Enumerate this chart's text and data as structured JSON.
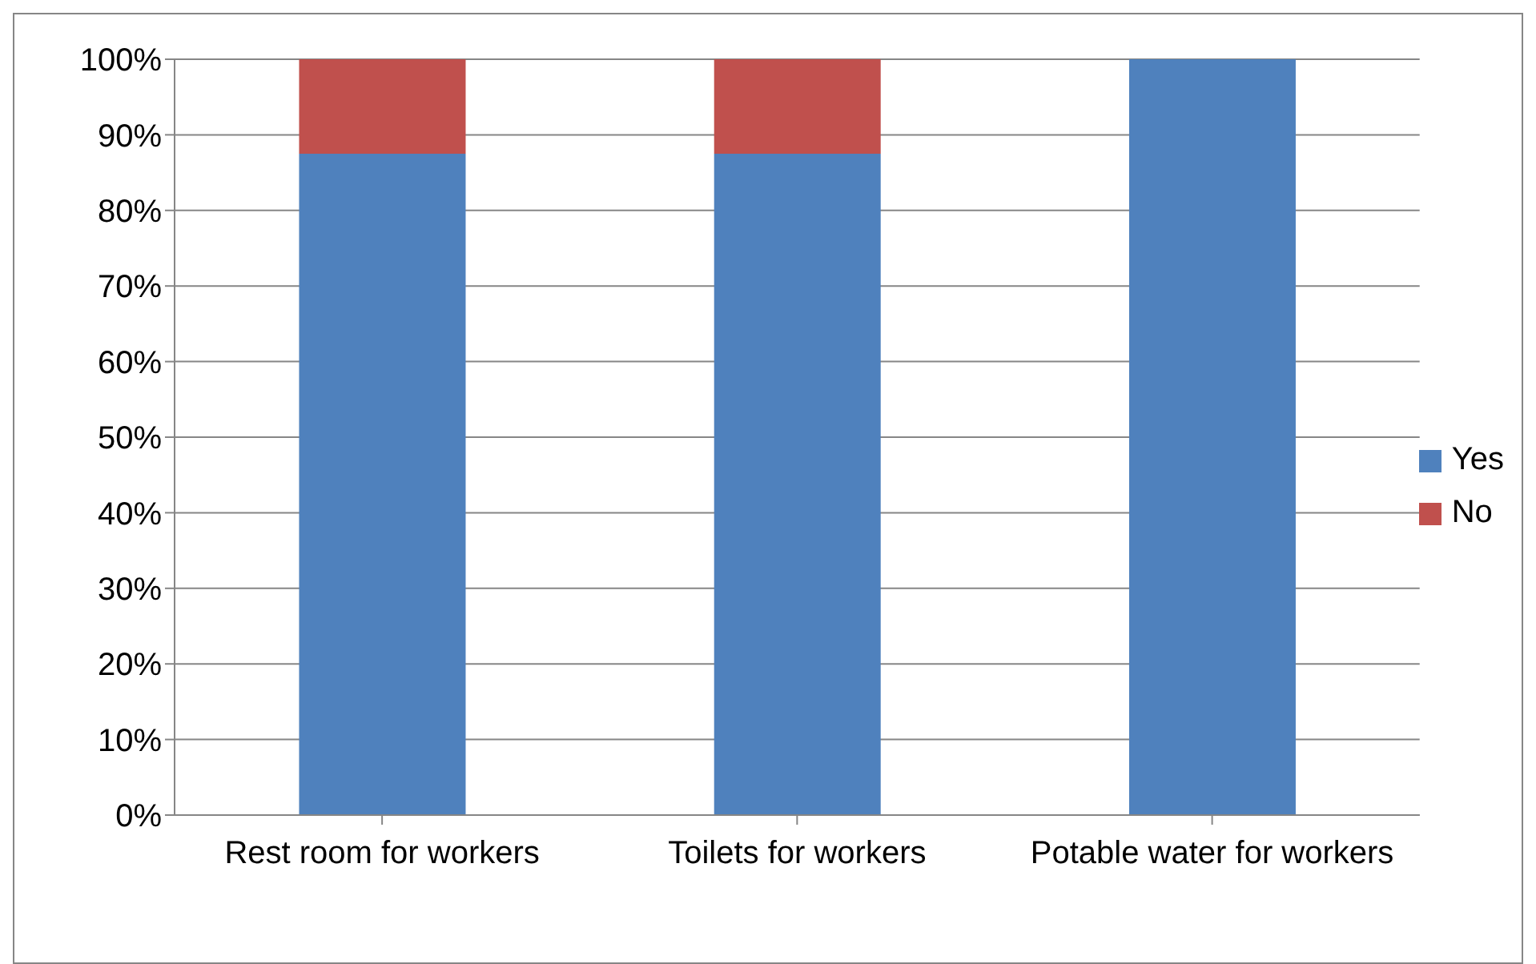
{
  "chart_data": {
    "type": "bar",
    "stacked": true,
    "categories": [
      "Rest room for workers",
      "Toilets for workers",
      "Potable water for workers"
    ],
    "series": [
      {
        "name": "Yes",
        "color": "#4f81bd",
        "values": [
          87.5,
          87.5,
          100
        ]
      },
      {
        "name": "No",
        "color": "#c0504d",
        "values": [
          12.5,
          12.5,
          0
        ]
      }
    ],
    "ylim": [
      0,
      100
    ],
    "yticks": [
      {
        "value": 0,
        "label": "0%"
      },
      {
        "value": 10,
        "label": "10%"
      },
      {
        "value": 20,
        "label": "20%"
      },
      {
        "value": 30,
        "label": "30%"
      },
      {
        "value": 40,
        "label": "40%"
      },
      {
        "value": 50,
        "label": "50%"
      },
      {
        "value": 60,
        "label": "60%"
      },
      {
        "value": 70,
        "label": "70%"
      },
      {
        "value": 80,
        "label": "80%"
      },
      {
        "value": 90,
        "label": "90%"
      },
      {
        "value": 100,
        "label": "100%"
      }
    ],
    "grid": "y",
    "legend": "right"
  }
}
